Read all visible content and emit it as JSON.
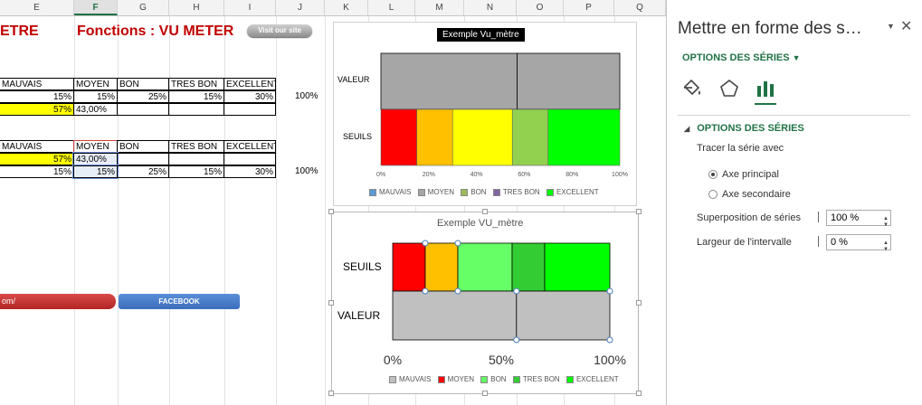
{
  "columns": [
    "E",
    "F",
    "G",
    "H",
    "I",
    "J",
    "K",
    "L",
    "M",
    "N",
    "O",
    "P",
    "Q"
  ],
  "sheet": {
    "title_left": "ETRE",
    "title_main": "Fonctions : VU METER",
    "visit_button": "Visit our site",
    "table1": {
      "headers": [
        "MAUVAIS",
        "MOYEN",
        "BON",
        "TRES BON",
        "EXCELLENT"
      ],
      "row1": [
        "15%",
        "15%",
        "25%",
        "15%",
        "30%"
      ],
      "row1_total": "100%",
      "row2": [
        "57%",
        "43,00%"
      ]
    },
    "table2": {
      "headers": [
        "MAUVAIS",
        "MOYEN",
        "BON",
        "TRES BON",
        "EXCELLENT"
      ],
      "row1": [
        "57%",
        "43,00%"
      ],
      "row2": [
        "15%",
        "15%",
        "25%",
        "15%",
        "30%"
      ],
      "row2_total": "100%"
    },
    "link_button": "om/",
    "facebook_button": "FACEBOOK"
  },
  "chart_data": [
    {
      "type": "bar",
      "orientation": "horizontal",
      "stacked": true,
      "title": "Exemple Vu_mètre",
      "categories": [
        "VALEUR",
        "SEUILS"
      ],
      "series": [
        {
          "name": "MAUVAIS",
          "values": [
            57,
            15
          ],
          "color": "#ff0000"
        },
        {
          "name": "MOYEN",
          "values": [
            43,
            15
          ],
          "color": "#ffc000"
        },
        {
          "name": "BON",
          "values": [
            0,
            25
          ],
          "color": "#ffff00"
        },
        {
          "name": "TRES BON",
          "values": [
            0,
            15
          ],
          "color": "#92d050"
        },
        {
          "name": "EXCELLENT",
          "values": [
            0,
            30
          ],
          "color": "#00ff00"
        }
      ],
      "valeur_color": "#a6a6a6",
      "xticks": [
        "0%",
        "20%",
        "40%",
        "60%",
        "80%",
        "100%"
      ],
      "xlim": [
        0,
        100
      ],
      "legend": "bottom"
    },
    {
      "type": "bar",
      "orientation": "horizontal",
      "stacked": true,
      "title": "Exemple VU_mètre",
      "categories": [
        "SEUILS",
        "VALEUR"
      ],
      "series": [
        {
          "name": "MAUVAIS",
          "values": [
            15,
            57
          ],
          "color": "#ff0000"
        },
        {
          "name": "MOYEN",
          "values": [
            15,
            43
          ],
          "color": "#ffc000"
        },
        {
          "name": "BON",
          "values": [
            25,
            0
          ],
          "color": "#66ff66"
        },
        {
          "name": "TRES BON",
          "values": [
            15,
            0
          ],
          "color": "#33cc33"
        },
        {
          "name": "EXCELLENT",
          "values": [
            30,
            0
          ],
          "color": "#00ff00"
        }
      ],
      "valeur_color": "#c0c0c0",
      "xticks": [
        "0%",
        "50%",
        "100%"
      ],
      "xlim": [
        0,
        100
      ],
      "legend": "bottom"
    }
  ],
  "pane": {
    "title": "Mettre en forme des s…",
    "section_dropdown": "OPTIONS DES SÉRIES",
    "section_header": "OPTIONS DES SÉRIES",
    "plot_on": "Tracer la série avec",
    "axis_primary": "Axe principal",
    "axis_secondary": "Axe secondaire",
    "overlap_label": "Superposition de séries",
    "overlap_value": "100 %",
    "gap_label": "Largeur de l'intervalle",
    "gap_value": "0 %",
    "icons": [
      "paint-bucket-icon",
      "pentagon-icon",
      "bar-chart-icon"
    ]
  }
}
